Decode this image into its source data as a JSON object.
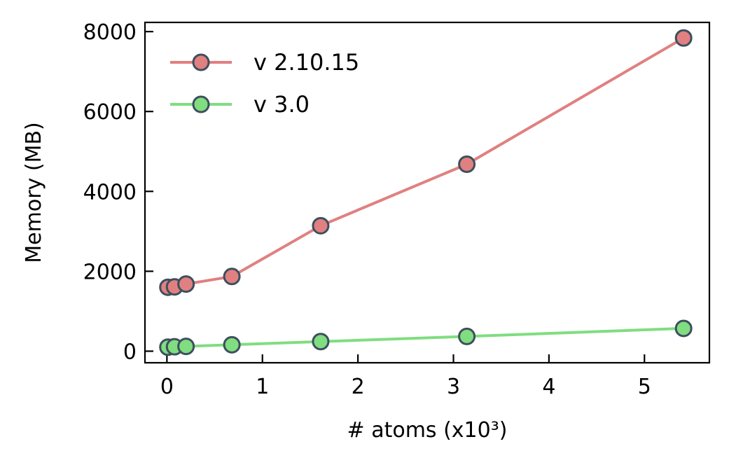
{
  "chart_data": {
    "type": "line",
    "xlabel": "# atoms (x10³)",
    "ylabel": "Memory (MB)",
    "xlim": [
      -0.23,
      5.68
    ],
    "ylim": [
      -290,
      8230
    ],
    "xticks": [
      0,
      1,
      2,
      3,
      4,
      5
    ],
    "yticks": [
      0,
      2000,
      4000,
      6000,
      8000
    ],
    "grid": false,
    "legend_position": "top-left",
    "series": [
      {
        "name": "v 2.10.15",
        "color": "#e08080",
        "x": [
          0.01,
          0.08,
          0.2,
          0.68,
          1.61,
          3.14,
          5.41
        ],
        "values": [
          1600,
          1610,
          1680,
          1870,
          3140,
          4680,
          7840
        ]
      },
      {
        "name": "v 3.0",
        "color": "#80dd80",
        "x": [
          0.01,
          0.08,
          0.2,
          0.68,
          1.61,
          3.14,
          5.41
        ],
        "values": [
          100,
          110,
          120,
          160,
          240,
          370,
          570
        ]
      }
    ],
    "marker_edge_color": "#3d4f5e"
  }
}
